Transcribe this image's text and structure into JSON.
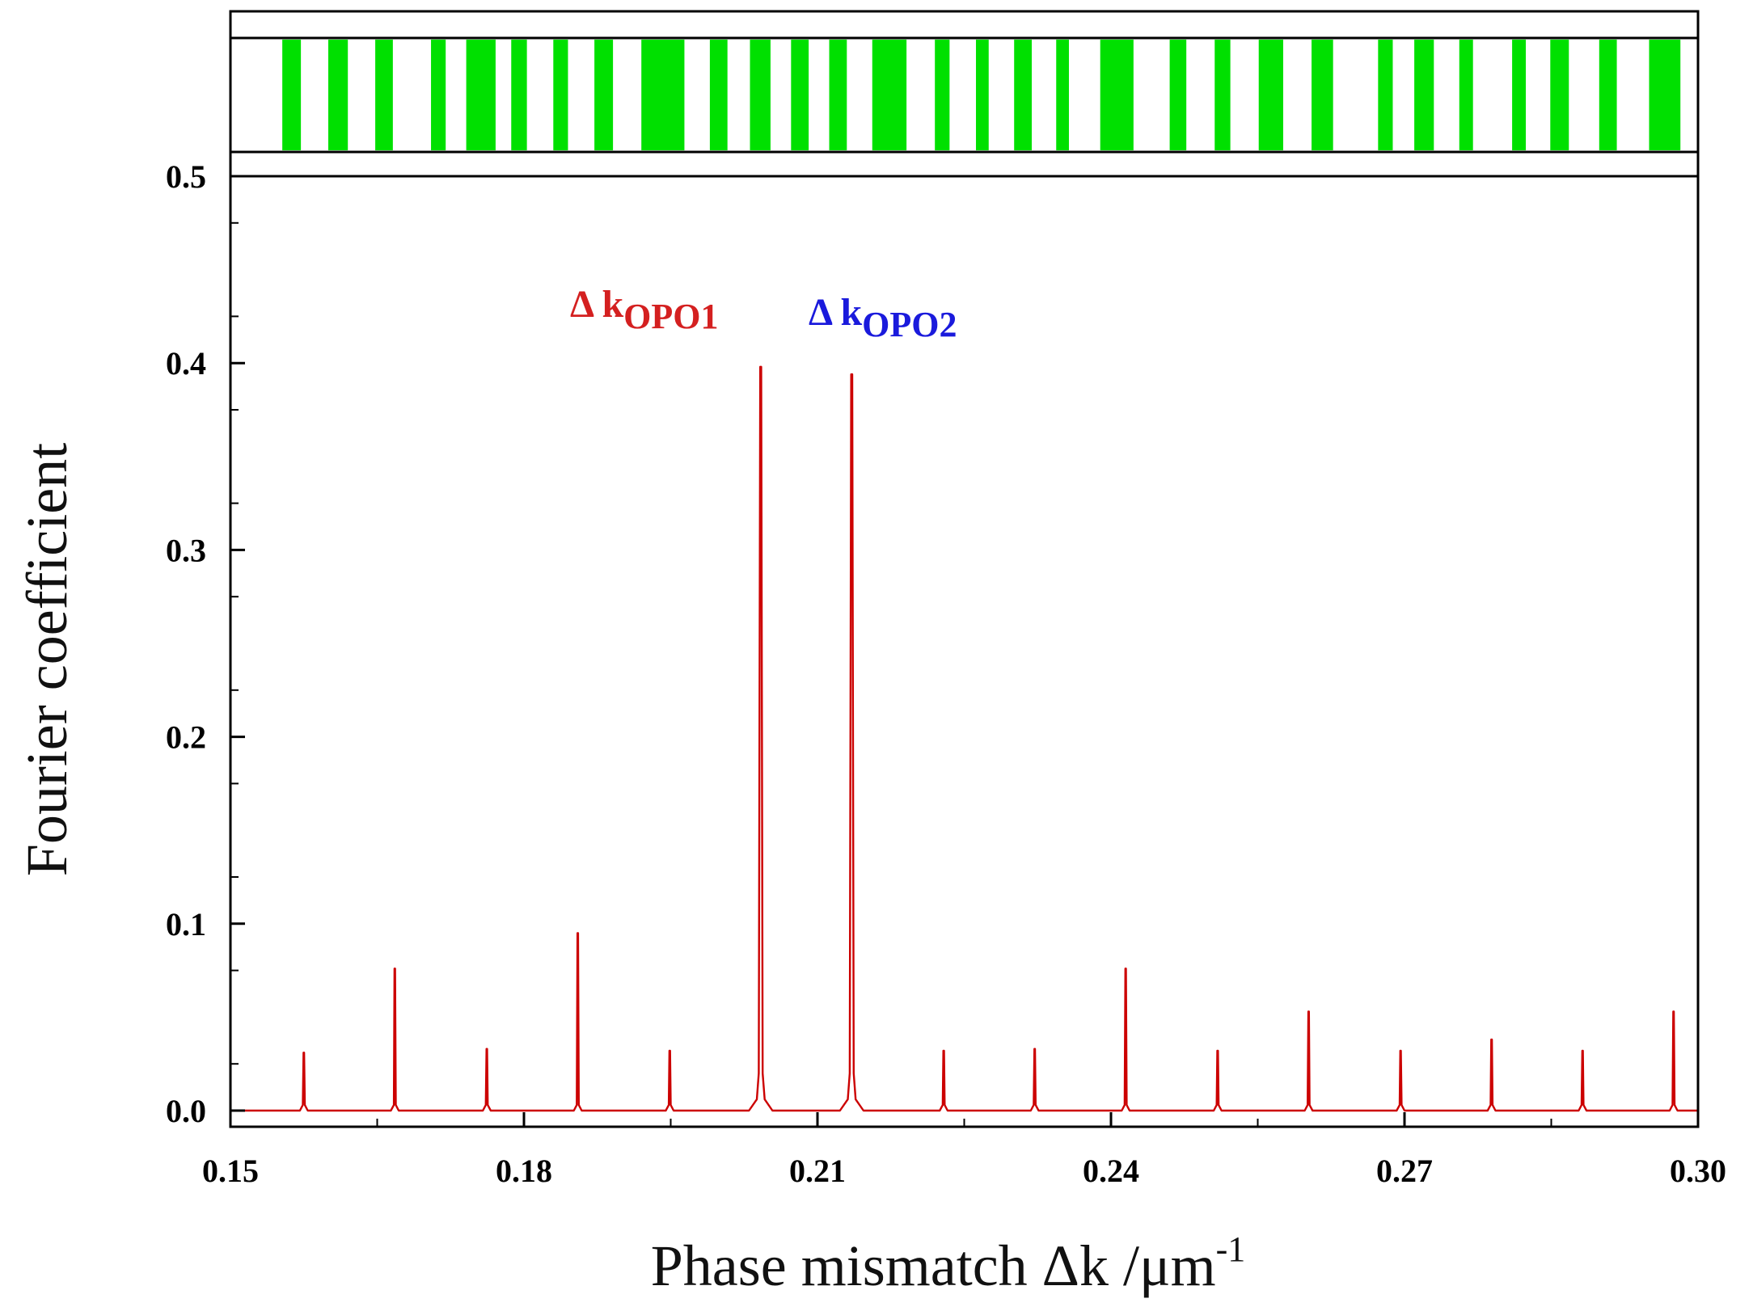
{
  "chart_data": {
    "type": "line",
    "xlabel": "Phase mismatch  Δk /μm",
    "xlabel_superscript": "-1",
    "ylabel": "Fourier coefficient",
    "xlim": [
      0.15,
      0.3
    ],
    "ylim": [
      -0.01,
      0.5
    ],
    "x_ticks": [
      0.15,
      0.18,
      0.21,
      0.24,
      0.27,
      0.3
    ],
    "x_tick_labels": [
      "0.15",
      "0.18",
      "0.21",
      "0.24",
      "0.27",
      "0.30"
    ],
    "y_ticks": [
      0.0,
      0.1,
      0.2,
      0.3,
      0.4,
      0.5
    ],
    "y_tick_labels": [
      "0.0",
      "0.1",
      "0.2",
      "0.3",
      "0.4",
      "0.5"
    ],
    "series_color": "#cc0000",
    "peaks": [
      {
        "x": 0.1575,
        "y": 0.031
      },
      {
        "x": 0.1668,
        "y": 0.076
      },
      {
        "x": 0.1762,
        "y": 0.033
      },
      {
        "x": 0.1855,
        "y": 0.095
      },
      {
        "x": 0.1949,
        "y": 0.032
      },
      {
        "x": 0.2042,
        "y": 0.398
      },
      {
        "x": 0.2135,
        "y": 0.394
      },
      {
        "x": 0.2229,
        "y": 0.032
      },
      {
        "x": 0.2322,
        "y": 0.033
      },
      {
        "x": 0.2415,
        "y": 0.076
      },
      {
        "x": 0.2509,
        "y": 0.032
      },
      {
        "x": 0.2602,
        "y": 0.053
      },
      {
        "x": 0.2696,
        "y": 0.032
      },
      {
        "x": 0.2789,
        "y": 0.038
      },
      {
        "x": 0.2882,
        "y": 0.032
      },
      {
        "x": 0.2975,
        "y": 0.053
      }
    ],
    "annotations": [
      {
        "text": "Δ k",
        "sub": "OPO1",
        "color": "#d42020",
        "peak_x": 0.2042
      },
      {
        "text": "Δ k",
        "sub": "OPO2",
        "color": "#1a1adc",
        "peak_x": 0.2135
      }
    ],
    "domain_strip": {
      "fill_color": "#00e000",
      "domains": [
        {
          "start": 0.1553,
          "end": 0.1572
        },
        {
          "start": 0.16,
          "end": 0.162
        },
        {
          "start": 0.1648,
          "end": 0.1666
        },
        {
          "start": 0.1705,
          "end": 0.172
        },
        {
          "start": 0.1741,
          "end": 0.1771
        },
        {
          "start": 0.1787,
          "end": 0.1803
        },
        {
          "start": 0.183,
          "end": 0.1845
        },
        {
          "start": 0.1872,
          "end": 0.1891
        },
        {
          "start": 0.192,
          "end": 0.1964
        },
        {
          "start": 0.199,
          "end": 0.2008
        },
        {
          "start": 0.2031,
          "end": 0.2052
        },
        {
          "start": 0.2073,
          "end": 0.2091
        },
        {
          "start": 0.2112,
          "end": 0.213
        },
        {
          "start": 0.2156,
          "end": 0.2191
        },
        {
          "start": 0.222,
          "end": 0.2235
        },
        {
          "start": 0.2262,
          "end": 0.2275
        },
        {
          "start": 0.2301,
          "end": 0.2319
        },
        {
          "start": 0.2344,
          "end": 0.2357
        },
        {
          "start": 0.2389,
          "end": 0.2423
        },
        {
          "start": 0.246,
          "end": 0.2477
        },
        {
          "start": 0.2506,
          "end": 0.2522
        },
        {
          "start": 0.2551,
          "end": 0.2576
        },
        {
          "start": 0.2605,
          "end": 0.2627
        },
        {
          "start": 0.2673,
          "end": 0.2688
        },
        {
          "start": 0.271,
          "end": 0.273
        },
        {
          "start": 0.2756,
          "end": 0.277
        },
        {
          "start": 0.281,
          "end": 0.2824
        },
        {
          "start": 0.2849,
          "end": 0.2868
        },
        {
          "start": 0.2899,
          "end": 0.2917
        },
        {
          "start": 0.295,
          "end": 0.2982
        }
      ]
    }
  }
}
